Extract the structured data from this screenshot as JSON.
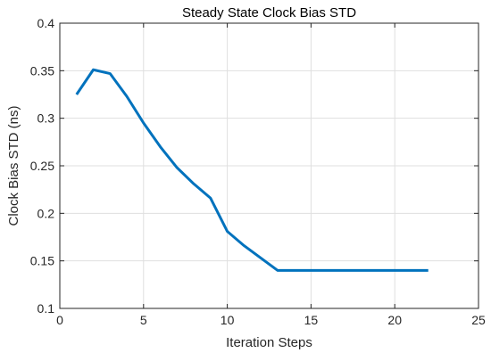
{
  "chart_data": {
    "type": "line",
    "title": "Steady State Clock Bias STD",
    "xlabel": "Iteration Steps",
    "ylabel": "Clock Bias STD (ns)",
    "xlim": [
      0,
      25
    ],
    "ylim": [
      0.1,
      0.4
    ],
    "xticks": [
      0,
      5,
      10,
      15,
      20,
      25
    ],
    "yticks": [
      0.1,
      0.15,
      0.2,
      0.25,
      0.3,
      0.35,
      0.4
    ],
    "xtick_labels": [
      "0",
      "5",
      "10",
      "15",
      "20",
      "25"
    ],
    "ytick_labels": [
      "0.1",
      "0.15",
      "0.2",
      "0.25",
      "0.3",
      "0.35",
      "0.4"
    ],
    "grid": true,
    "series": [
      {
        "color": "#0072bd",
        "x": [
          1,
          2,
          3,
          4,
          5,
          6,
          7,
          8,
          9,
          10,
          11,
          12,
          13,
          14,
          15,
          16,
          17,
          18,
          19,
          20,
          21,
          22
        ],
        "y": [
          0.325,
          0.351,
          0.347,
          0.323,
          0.295,
          0.27,
          0.248,
          0.231,
          0.216,
          0.181,
          0.166,
          0.153,
          0.14,
          0.14,
          0.14,
          0.14,
          0.14,
          0.14,
          0.14,
          0.14,
          0.14,
          0.14
        ]
      }
    ]
  }
}
